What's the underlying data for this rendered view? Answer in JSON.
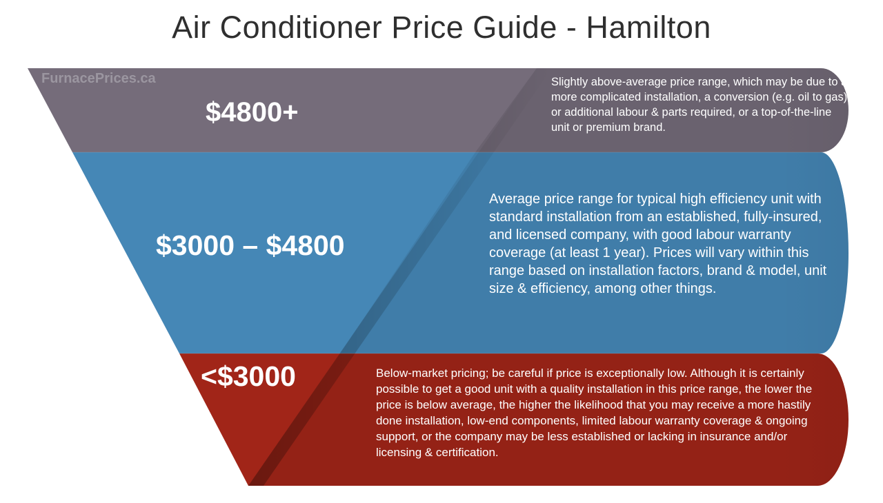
{
  "title": "Air Conditioner Price Guide - Hamilton",
  "watermark": "FurnacePrices.ca",
  "tiers": [
    {
      "price": "$4800+",
      "description": "Slightly above-average price range, which may be due to a more complicated installation, a conversion (e.g. oil to gas) or additional labour & parts required, or a top-of-the-line unit or premium brand.",
      "color": "#756c7a"
    },
    {
      "price": "$3000 – $4800",
      "description": "Average price range for typical high efficiency unit with standard installation from an established, fully-insured, and licensed company, with good labour warranty coverage (at least 1 year). Prices will vary within this range based on installation factors, brand & model, unit size & efficiency, among other things.",
      "color": "#4587b6"
    },
    {
      "price": "<$3000",
      "description": "Below-market pricing; be careful if price is exceptionally low. Although it is certainly possible to get a good unit with a quality installation in this price range, the lower the price is below average, the higher the likelihood that you may receive a more hastily done installation, low-end components, limited labour warranty coverage & ongoing support, or the company may be less established or lacking in insurance and/or licensing & certification.",
      "color": "#a12518"
    }
  ]
}
